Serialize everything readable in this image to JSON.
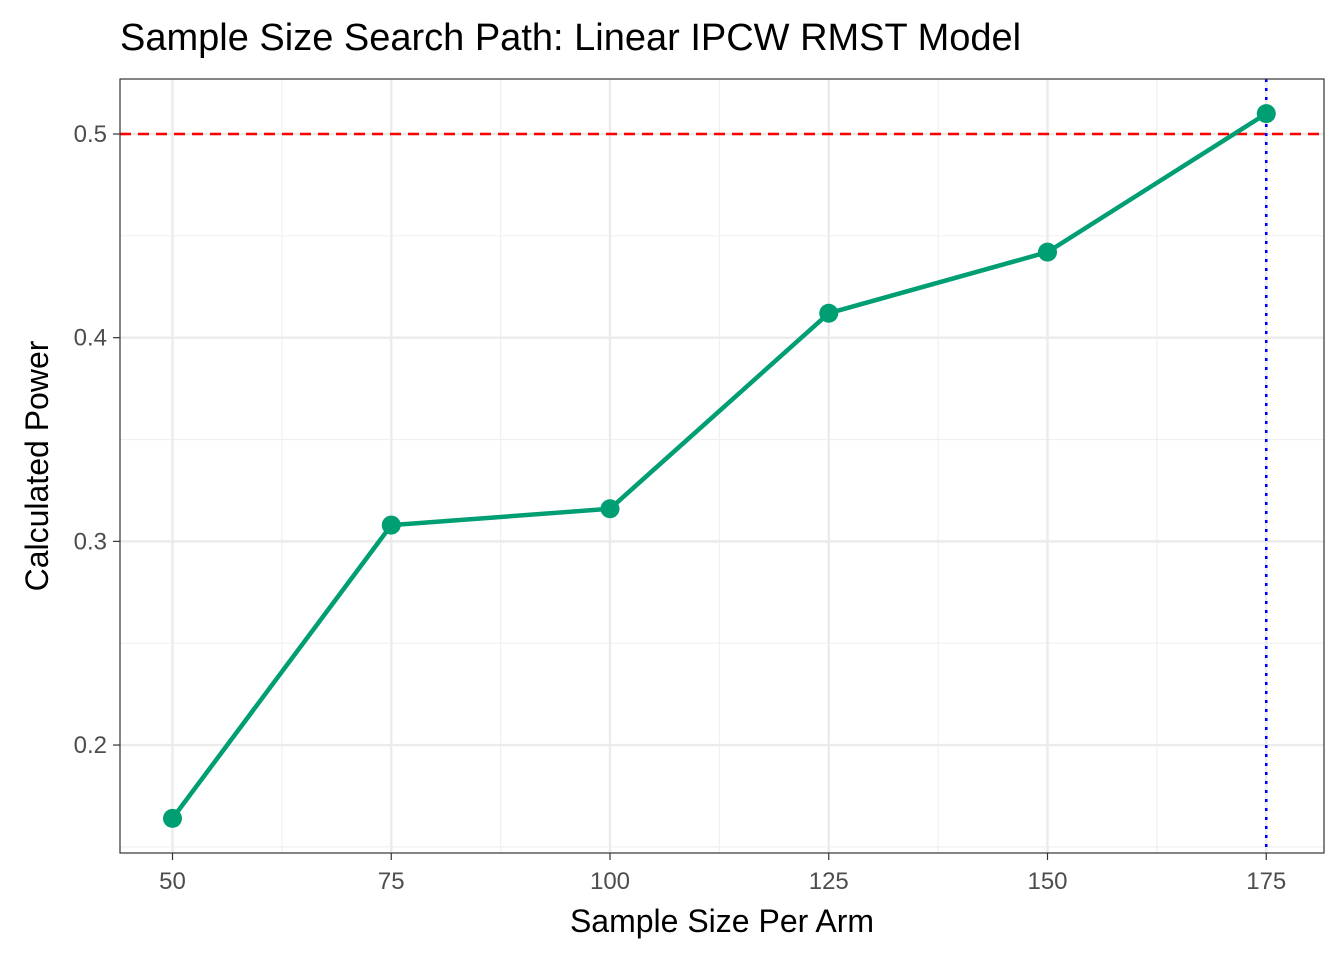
{
  "chart_data": {
    "type": "line",
    "title": "Sample Size Search Path: Linear IPCW RMST Model",
    "xlabel": "Sample Size Per Arm",
    "ylabel": "Calculated Power",
    "x": [
      50,
      75,
      100,
      125,
      150,
      175
    ],
    "series": [
      {
        "values": [
          0.164,
          0.308,
          0.316,
          0.412,
          0.442,
          0.51
        ],
        "color": "#009E73"
      }
    ],
    "xlim": [
      44,
      181.6
    ],
    "ylim": [
      0.147,
      0.527
    ],
    "xticks": [
      50,
      75,
      100,
      125,
      150,
      175
    ],
    "xtick_labels": [
      "50",
      "75",
      "100",
      "125",
      "150",
      "175"
    ],
    "yticks": [
      0.2,
      0.3,
      0.4,
      0.5
    ],
    "ytick_labels": [
      "0.2",
      "0.3",
      "0.4",
      "0.5"
    ],
    "target_power": 0.5,
    "target_line_color": "#FF0000",
    "selected_sample_size": 175,
    "selected_line_color": "#0000FF",
    "grid": true,
    "legend": "none"
  }
}
